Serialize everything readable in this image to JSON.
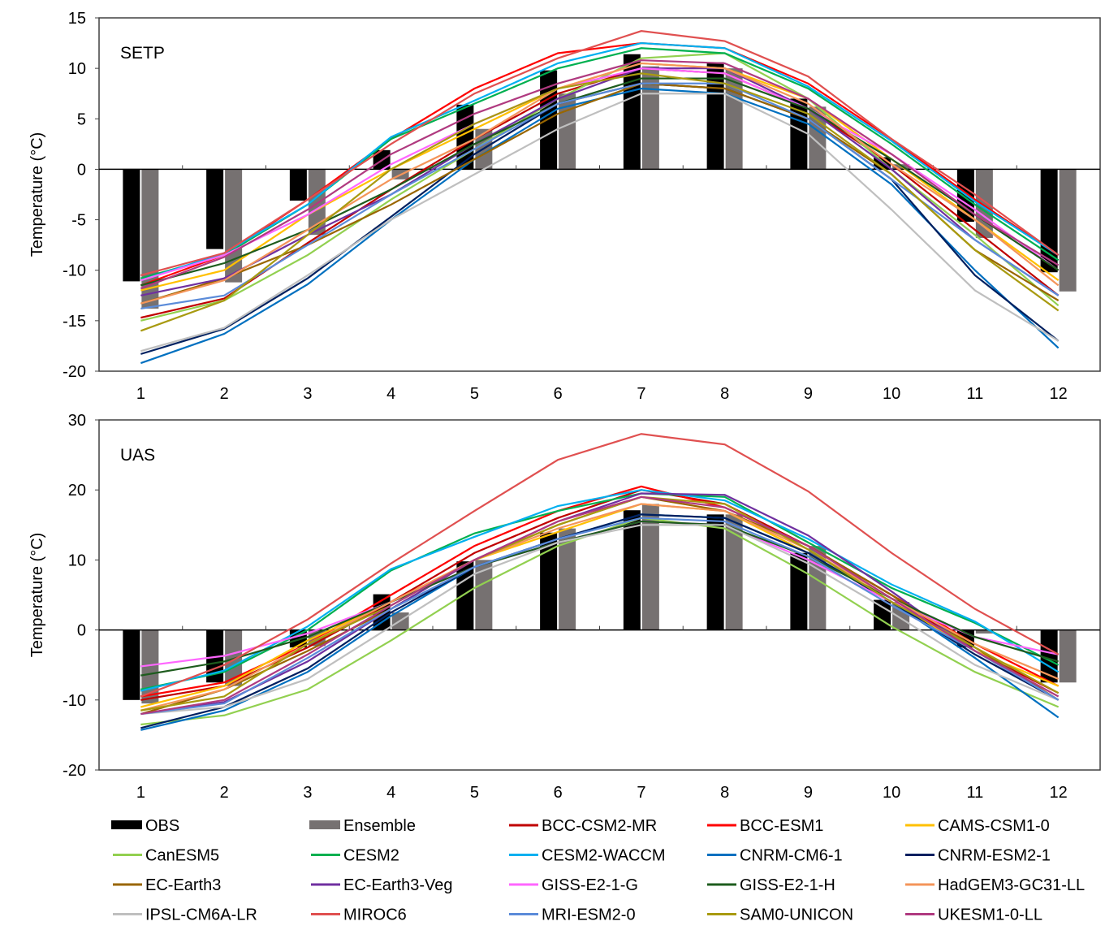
{
  "chart_data": [
    {
      "type": "bar+line",
      "title": "SETP",
      "ylabel": "Temperature (°C)",
      "ylim": [
        -20,
        15
      ],
      "yticks": [
        -20,
        -15,
        -10,
        -5,
        0,
        5,
        10,
        15
      ],
      "categories": [
        "1",
        "2",
        "3",
        "4",
        "5",
        "6",
        "7",
        "8",
        "9",
        "10",
        "11",
        "12"
      ],
      "bars": [
        {
          "name": "OBS",
          "color": "#000000",
          "values": [
            -11.1,
            -7.9,
            -3.1,
            1.9,
            6.4,
            9.8,
            11.4,
            10.6,
            7.0,
            1.2,
            -5.2,
            -10.2
          ]
        },
        {
          "name": "Ensemble",
          "color": "#767171",
          "values": [
            -13.8,
            -11.2,
            -6.5,
            -1.0,
            4.0,
            7.5,
            10.2,
            10.0,
            6.2,
            0.5,
            -6.8,
            -12.1
          ]
        }
      ],
      "series": [
        {
          "name": "BCC-CSM2-MR",
          "values": [
            -14.7,
            -12.8,
            -7.3,
            -2,
            3,
            7.5,
            10,
            9.5,
            6,
            0.5,
            -6,
            -12.5
          ]
        },
        {
          "name": "BCC-ESM1",
          "values": [
            -11.5,
            -8.5,
            -3,
            3,
            8,
            11.5,
            12.5,
            12,
            8.5,
            3,
            -3,
            -8.5
          ]
        },
        {
          "name": "CAMS-CSM1-0",
          "values": [
            -12,
            -10,
            -4.5,
            0,
            4,
            8,
            10.5,
            10,
            7,
            1,
            -5,
            -11
          ]
        },
        {
          "name": "CanESM5",
          "values": [
            -15,
            -13,
            -8.5,
            -3,
            2,
            7,
            11,
            11.5,
            7,
            0,
            -6.5,
            -13.5
          ]
        },
        {
          "name": "CESM2",
          "values": [
            -10.8,
            -8.5,
            -3.5,
            3,
            6.5,
            10,
            12,
            11.5,
            8,
            2.5,
            -3.5,
            -9
          ]
        },
        {
          "name": "CESM2-WACCM",
          "values": [
            -11,
            -8.3,
            -3.5,
            3.2,
            6.8,
            10.5,
            12.5,
            12,
            8.2,
            2.8,
            -3.2,
            -8.5
          ]
        },
        {
          "name": "CNRM-CM6-1",
          "values": [
            -19.2,
            -16.3,
            -11.4,
            -5,
            1,
            6,
            8,
            7.5,
            4.5,
            -1.5,
            -10,
            -17.7
          ]
        },
        {
          "name": "CNRM-ESM2-1",
          "values": [
            -18.3,
            -15.8,
            -10.8,
            -4.7,
            1.5,
            6.5,
            8.5,
            8,
            5,
            -1,
            -10.5,
            -17
          ]
        },
        {
          "name": "EC-Earth3",
          "values": [
            -13.3,
            -10.8,
            -7.5,
            -3.5,
            1,
            5.5,
            8.5,
            8,
            5,
            -0.5,
            -8,
            -13
          ]
        },
        {
          "name": "EC-Earth3-Veg",
          "values": [
            -12.5,
            -10.8,
            -6.5,
            -2.5,
            2.5,
            7,
            10,
            10,
            6,
            0,
            -7,
            -12.5
          ]
        },
        {
          "name": "GISS-E2-1-G",
          "values": [
            -11,
            -8.5,
            -4.5,
            0.5,
            4.5,
            8,
            10,
            9.5,
            6,
            1.5,
            -4,
            -10
          ]
        },
        {
          "name": "GISS-E2-1-H",
          "values": [
            -11.5,
            -9.3,
            -6,
            -2,
            2.5,
            6.5,
            9,
            9,
            6,
            1,
            -4.5,
            -10
          ]
        },
        {
          "name": "HadGEM3-GC31-LL",
          "values": [
            -13.3,
            -11,
            -6,
            -1,
            3,
            8,
            10.5,
            10,
            6.5,
            0.5,
            -5,
            -11.5
          ]
        },
        {
          "name": "IPSL-CM6A-LR",
          "values": [
            -18,
            -15.7,
            -10.5,
            -5,
            -0.5,
            4,
            7.5,
            7.5,
            3.5,
            -4,
            -12,
            -17
          ]
        },
        {
          "name": "MIROC6",
          "values": [
            -10.5,
            -8.3,
            -3,
            2.5,
            7.5,
            11,
            13.7,
            12.7,
            9.2,
            3,
            -2.5,
            -8.5
          ]
        },
        {
          "name": "MRI-ESM2-0",
          "values": [
            -13.8,
            -12.5,
            -7.5,
            -2.5,
            2,
            6.5,
            8.5,
            8.5,
            5,
            -1,
            -7,
            -12.5
          ]
        },
        {
          "name": "SAM0-UNICON",
          "values": [
            -16,
            -13,
            -6.5,
            0,
            4.5,
            8,
            9.5,
            8.5,
            5.5,
            -0.5,
            -8,
            -14
          ]
        },
        {
          "name": "UKESM1-0-LL",
          "values": [
            -11.8,
            -8.7,
            -4,
            1.5,
            5.5,
            8.5,
            10.8,
            10.5,
            7,
            1.5,
            -4.5,
            -9.5
          ]
        }
      ]
    },
    {
      "type": "bar+line",
      "title": "UAS",
      "ylabel": "Temperature (°C)",
      "ylim": [
        -20,
        30
      ],
      "yticks": [
        -20,
        -10,
        0,
        10,
        20,
        30
      ],
      "categories": [
        "1",
        "2",
        "3",
        "4",
        "5",
        "6",
        "7",
        "8",
        "9",
        "10",
        "11",
        "12"
      ],
      "bars": [
        {
          "name": "OBS",
          "color": "#000000",
          "values": [
            -10,
            -7.5,
            -2.5,
            5.1,
            9.8,
            13.9,
            17.1,
            16.5,
            11,
            4.3,
            -2.5,
            -7.5
          ]
        },
        {
          "name": "Ensemble",
          "color": "#767171",
          "values": [
            -10.5,
            -8,
            -2.3,
            2.5,
            10,
            14.5,
            18,
            16.5,
            12,
            4,
            -0.5,
            -7.5
          ]
        }
      ],
      "series": [
        {
          "name": "BCC-CSM2-MR",
          "values": [
            -10,
            -8,
            -2.5,
            4,
            11,
            16,
            20,
            18,
            12,
            5,
            -3,
            -9
          ]
        },
        {
          "name": "BCC-ESM1",
          "values": [
            -9.5,
            -7.5,
            -2,
            5,
            12,
            17,
            20.5,
            17.5,
            12,
            5,
            -2,
            -8
          ]
        },
        {
          "name": "CAMS-CSM1-0",
          "values": [
            -11,
            -8,
            -1.5,
            4,
            10,
            14,
            18,
            17,
            11,
            4,
            -3,
            -8
          ]
        },
        {
          "name": "CanESM5",
          "values": [
            -13.5,
            -12.2,
            -8.5,
            -1.5,
            6,
            12,
            16,
            14.5,
            8,
            0.5,
            -6,
            -11
          ]
        },
        {
          "name": "CESM2",
          "values": [
            -8.5,
            -6,
            0,
            8.5,
            13.8,
            17,
            19.5,
            19,
            12.5,
            6,
            1,
            -5
          ]
        },
        {
          "name": "CESM2-WACCM",
          "values": [
            -8.7,
            -5.8,
            0.5,
            8.7,
            13.3,
            17.7,
            20,
            18.5,
            13,
            6.5,
            1.2,
            -6
          ]
        },
        {
          "name": "CNRM-CM6-1",
          "values": [
            -14.3,
            -11.5,
            -6,
            2,
            9,
            13,
            16.5,
            16,
            11,
            4,
            -4,
            -12.5
          ]
        },
        {
          "name": "CNRM-ESM2-1",
          "values": [
            -14,
            -11,
            -5.5,
            2.5,
            9,
            13,
            16.5,
            16,
            11,
            4,
            -3.5,
            -10
          ]
        },
        {
          "name": "EC-Earth3",
          "values": [
            -12,
            -8.5,
            -3,
            3,
            10,
            15,
            19,
            17,
            12,
            5,
            -2.5,
            -10
          ]
        },
        {
          "name": "EC-Earth3-Veg",
          "values": [
            -12,
            -10.3,
            -4.5,
            3,
            10,
            15.5,
            19.5,
            19.3,
            13.5,
            5.5,
            -3,
            -10
          ]
        },
        {
          "name": "GISS-E2-1-G",
          "values": [
            -5.2,
            -3.7,
            -0.5,
            4,
            9,
            12.5,
            15.5,
            15,
            10,
            4,
            -1,
            -3.5
          ]
        },
        {
          "name": "GISS-E2-1-H",
          "values": [
            -6.5,
            -4.5,
            -1,
            4,
            9,
            12.5,
            15.5,
            15,
            10.5,
            4.5,
            -1,
            -4.5
          ]
        },
        {
          "name": "HadGEM3-GC31-LL",
          "values": [
            -11.5,
            -8.5,
            -2,
            4,
            10,
            14.5,
            18,
            17,
            11.5,
            4.5,
            -2,
            -7
          ]
        },
        {
          "name": "IPSL-CM6A-LR",
          "values": [
            -12,
            -11,
            -7,
            0.5,
            8,
            12.5,
            15,
            15,
            9.5,
            2.5,
            -5,
            -10
          ]
        },
        {
          "name": "MIROC6",
          "values": [
            -9.5,
            -5,
            1.5,
            9.5,
            17,
            24.3,
            28,
            26.5,
            19.8,
            11,
            3,
            -3.5
          ]
        },
        {
          "name": "MRI-ESM2-0",
          "values": [
            -12,
            -10.5,
            -4,
            3,
            9,
            13,
            16,
            15.5,
            10.5,
            3.5,
            -3,
            -10
          ]
        },
        {
          "name": "SAM0-UNICON",
          "values": [
            -11.5,
            -9.5,
            -2,
            3.5,
            10,
            15,
            19,
            18,
            11.5,
            4,
            -2.5,
            -9
          ]
        },
        {
          "name": "UKESM1-0-LL",
          "values": [
            -12,
            -10,
            -3.5,
            3.5,
            10,
            15.5,
            19,
            17.5,
            12,
            4.5,
            -3,
            -9.5
          ]
        }
      ]
    }
  ],
  "legend": [
    {
      "name": "OBS",
      "color": "#000000",
      "kind": "bar"
    },
    {
      "name": "Ensemble",
      "color": "#767171",
      "kind": "bar"
    },
    {
      "name": "BCC-CSM2-MR",
      "color": "#c00000"
    },
    {
      "name": "BCC-ESM1",
      "color": "#ff0000"
    },
    {
      "name": "CAMS-CSM1-0",
      "color": "#ffc000"
    },
    {
      "name": "CanESM5",
      "color": "#92d050"
    },
    {
      "name": "CESM2",
      "color": "#00b050"
    },
    {
      "name": "CESM2-WACCM",
      "color": "#00b0f0"
    },
    {
      "name": "CNRM-CM6-1",
      "color": "#0070c0"
    },
    {
      "name": "CNRM-ESM2-1",
      "color": "#002060"
    },
    {
      "name": "EC-Earth3",
      "color": "#996600"
    },
    {
      "name": "EC-Earth3-Veg",
      "color": "#7030a0"
    },
    {
      "name": "GISS-E2-1-G",
      "color": "#ff66ff"
    },
    {
      "name": "GISS-E2-1-H",
      "color": "#1e5c1e"
    },
    {
      "name": "HadGEM3-GC31-LL",
      "color": "#f4955a"
    },
    {
      "name": "IPSL-CM6A-LR",
      "color": "#bfbfbf"
    },
    {
      "name": "MIROC6",
      "color": "#e05050"
    },
    {
      "name": "MRI-ESM2-0",
      "color": "#5b8bd9"
    },
    {
      "name": "SAM0-UNICON",
      "color": "#a89a10"
    },
    {
      "name": "UKESM1-0-LL",
      "color": "#b03a80"
    }
  ]
}
